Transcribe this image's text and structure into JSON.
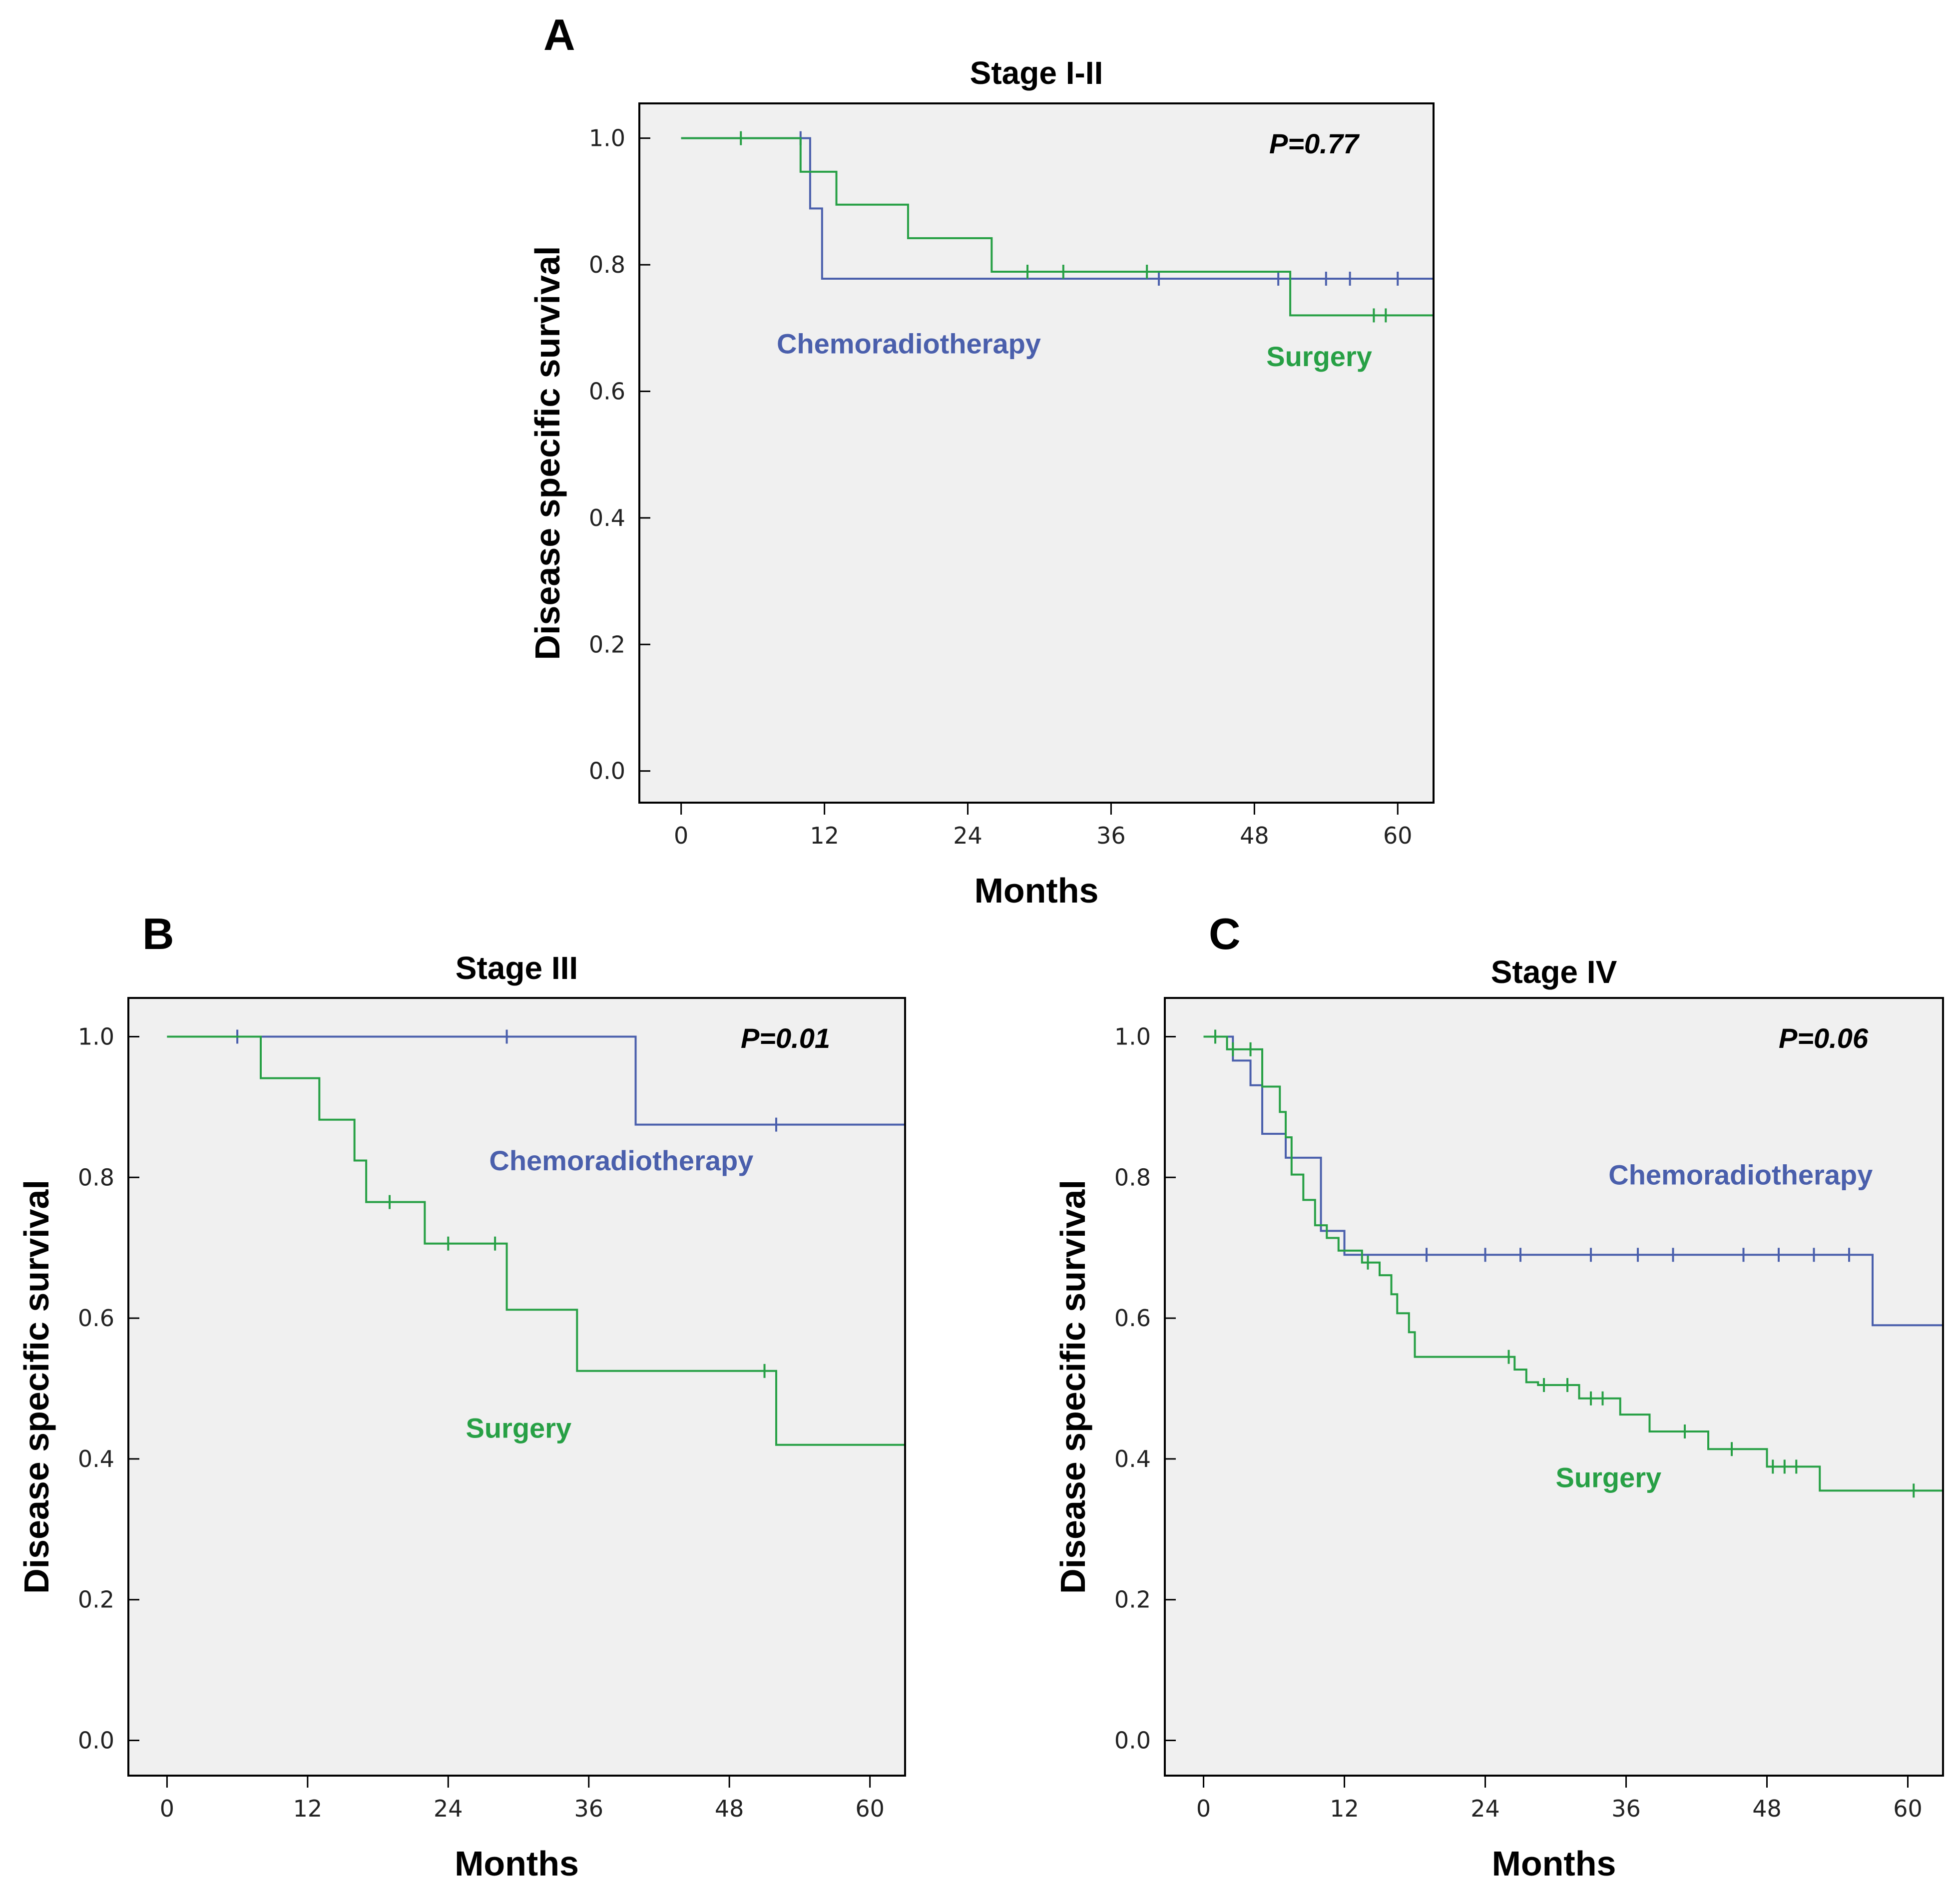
{
  "colors": {
    "chemoradiotherapy": "#4a5fac",
    "surgery": "#27a045",
    "background": "#f0f0f0"
  },
  "chart_data": [
    {
      "panel": "A",
      "type": "line",
      "subtype": "kaplan-meier",
      "title": "Stage I-II",
      "xlabel": "Months",
      "ylabel": "Disease specific survival",
      "xlim": [
        -3.5,
        63
      ],
      "ylim": [
        -0.05,
        1.055
      ],
      "xticks": [
        0,
        12,
        24,
        36,
        48,
        60
      ],
      "yticks": [
        "0.0",
        "0.2",
        "0.4",
        "0.6",
        "0.8",
        "1.0"
      ],
      "p_value": "P=0.77",
      "series": [
        {
          "name": "Chemoradiotherapy",
          "color_key": "chemoradiotherapy",
          "steps": [
            [
              0,
              1.0
            ],
            [
              10.8,
              0.889
            ],
            [
              11.8,
              0.778
            ],
            [
              63,
              0.778
            ]
          ],
          "censored": [
            [
              10,
              1.0
            ],
            [
              40,
              0.778
            ],
            [
              50,
              0.778
            ],
            [
              54,
              0.778
            ],
            [
              56,
              0.778
            ],
            [
              60,
              0.778
            ]
          ]
        },
        {
          "name": "Surgery",
          "color_key": "surgery",
          "steps": [
            [
              0,
              1.0
            ],
            [
              10,
              0.947
            ],
            [
              13,
              0.895
            ],
            [
              19,
              0.842
            ],
            [
              26,
              0.789
            ],
            [
              51,
              0.72
            ],
            [
              63,
              0.72
            ]
          ],
          "censored": [
            [
              5,
              1.0
            ],
            [
              29,
              0.789
            ],
            [
              32,
              0.789
            ],
            [
              39,
              0.789
            ],
            [
              58,
              0.72
            ],
            [
              59,
              0.72
            ]
          ]
        }
      ],
      "annotations": [
        {
          "text": "Chemoradiotherapy",
          "color_key": "chemoradiotherapy",
          "x": 8,
          "y": 0.66
        },
        {
          "text": "Surgery",
          "color_key": "surgery",
          "x": 49,
          "y": 0.64
        }
      ]
    },
    {
      "panel": "B",
      "type": "line",
      "subtype": "kaplan-meier",
      "title": "Stage III",
      "xlabel": "Months",
      "ylabel": "Disease specific survival",
      "xlim": [
        -3.3,
        63
      ],
      "ylim": [
        -0.05,
        1.055
      ],
      "xticks": [
        0,
        12,
        24,
        36,
        48,
        60
      ],
      "yticks": [
        "0.0",
        "0.2",
        "0.4",
        "0.6",
        "0.8",
        "1.0"
      ],
      "p_value": "P=0.01",
      "series": [
        {
          "name": "Chemoradiotherapy",
          "color_key": "chemoradiotherapy",
          "steps": [
            [
              0,
              1.0
            ],
            [
              40,
              0.875
            ],
            [
              63,
              0.875
            ]
          ],
          "censored": [
            [
              6,
              1.0
            ],
            [
              29,
              1.0
            ],
            [
              52,
              0.875
            ]
          ]
        },
        {
          "name": "Surgery",
          "color_key": "surgery",
          "steps": [
            [
              0,
              1.0
            ],
            [
              8,
              0.941
            ],
            [
              13,
              0.882
            ],
            [
              16,
              0.824
            ],
            [
              17,
              0.765
            ],
            [
              22,
              0.706
            ],
            [
              29,
              0.612
            ],
            [
              35,
              0.525
            ],
            [
              52,
              0.42
            ],
            [
              63,
              0.42
            ]
          ],
          "censored": [
            [
              19,
              0.765
            ],
            [
              24,
              0.706
            ],
            [
              28,
              0.706
            ],
            [
              51,
              0.525
            ]
          ]
        }
      ],
      "annotations": [
        {
          "text": "Chemoradiotherapy",
          "color_key": "chemoradiotherapy",
          "x": 27.5,
          "y": 0.81
        },
        {
          "text": "Surgery",
          "color_key": "surgery",
          "x": 25.5,
          "y": 0.43
        }
      ]
    },
    {
      "panel": "C",
      "type": "line",
      "subtype": "kaplan-meier",
      "title": "Stage IV",
      "xlabel": "Months",
      "ylabel": "Disease specific survival",
      "xlim": [
        -3.3,
        63
      ],
      "ylim": [
        -0.05,
        1.055
      ],
      "xticks": [
        0,
        12,
        24,
        36,
        48,
        60
      ],
      "yticks": [
        "0.0",
        "0.2",
        "0.4",
        "0.6",
        "0.8",
        "1.0"
      ],
      "p_value": "P=0.06",
      "series": [
        {
          "name": "Chemoradiotherapy",
          "color_key": "chemoradiotherapy",
          "steps": [
            [
              0,
              1.0
            ],
            [
              2.5,
              0.966
            ],
            [
              4,
              0.931
            ],
            [
              5,
              0.862
            ],
            [
              7,
              0.828
            ],
            [
              10,
              0.724
            ],
            [
              12,
              0.69
            ],
            [
              57,
              0.69
            ],
            [
              57,
              0.59
            ],
            [
              63,
              0.59
            ]
          ],
          "censored": [
            [
              19,
              0.69
            ],
            [
              24,
              0.69
            ],
            [
              27,
              0.69
            ],
            [
              33,
              0.69
            ],
            [
              37,
              0.69
            ],
            [
              40,
              0.69
            ],
            [
              46,
              0.69
            ],
            [
              49,
              0.69
            ],
            [
              52,
              0.69
            ],
            [
              55,
              0.69
            ]
          ]
        },
        {
          "name": "Surgery",
          "color_key": "surgery",
          "steps": [
            [
              0,
              1.0
            ],
            [
              2,
              0.982
            ],
            [
              5,
              0.929
            ],
            [
              6.5,
              0.893
            ],
            [
              7,
              0.857
            ],
            [
              7.5,
              0.804
            ],
            [
              8.5,
              0.768
            ],
            [
              9.5,
              0.732
            ],
            [
              10.5,
              0.714
            ],
            [
              11.5,
              0.696
            ],
            [
              13.5,
              0.679
            ],
            [
              15,
              0.661
            ],
            [
              16,
              0.634
            ],
            [
              16.5,
              0.607
            ],
            [
              17.5,
              0.58
            ],
            [
              18,
              0.545
            ],
            [
              26.5,
              0.527
            ],
            [
              27.5,
              0.509
            ],
            [
              28.5,
              0.505
            ],
            [
              32,
              0.486
            ],
            [
              35.5,
              0.463
            ],
            [
              38,
              0.439
            ],
            [
              43,
              0.414
            ],
            [
              48,
              0.389
            ],
            [
              52.5,
              0.355
            ],
            [
              63,
              0.355
            ]
          ],
          "censored": [
            [
              1,
              1.0
            ],
            [
              2.5,
              0.982
            ],
            [
              4,
              0.982
            ],
            [
              14,
              0.679
            ],
            [
              26,
              0.545
            ],
            [
              29,
              0.505
            ],
            [
              31,
              0.505
            ],
            [
              33,
              0.486
            ],
            [
              34,
              0.486
            ],
            [
              41,
              0.439
            ],
            [
              45,
              0.414
            ],
            [
              48.5,
              0.389
            ],
            [
              49.5,
              0.389
            ],
            [
              50.5,
              0.389
            ],
            [
              60.5,
              0.355
            ]
          ]
        }
      ],
      "annotations": [
        {
          "text": "Chemoradiotherapy",
          "color_key": "chemoradiotherapy",
          "x": 34.5,
          "y": 0.79
        },
        {
          "text": "Surgery",
          "color_key": "surgery",
          "x": 30,
          "y": 0.36
        }
      ]
    }
  ]
}
